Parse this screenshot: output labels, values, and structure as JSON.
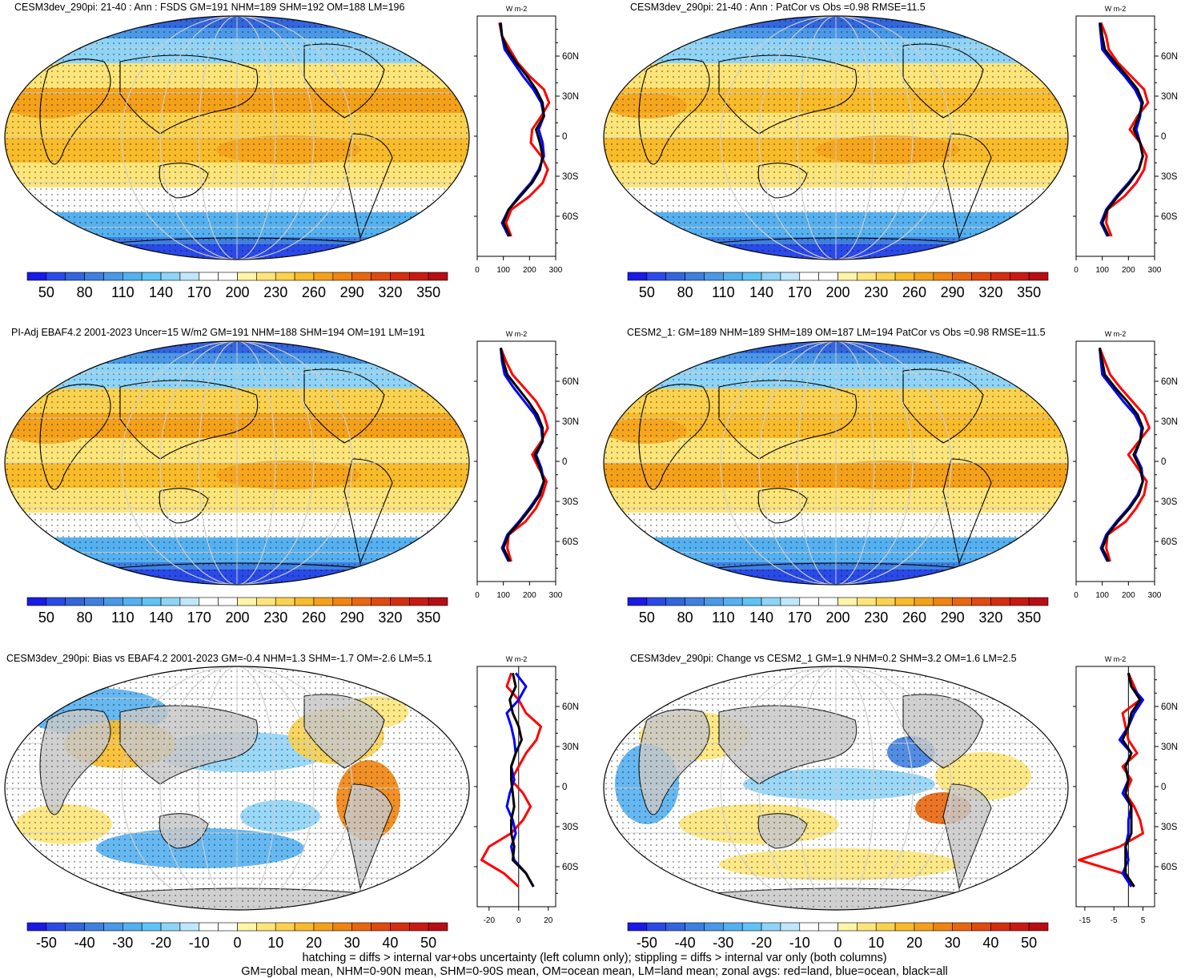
{
  "footer": {
    "line1": "hatching = diffs > internal var+obs uncertainty (left column only); stippling = diffs > internal var only (both columns)",
    "line2": "GM=global mean, NHM=0-90N mean, SHM=0-90S mean, OM=ocean mean, LM=land mean; zonal avgs: red=land, blue=ocean, black=all"
  },
  "colors": {
    "land_line": "#ff0000",
    "ocean_line": "#0000ff",
    "all_line": "#000000",
    "missing": "#c8c8c8",
    "colormap": [
      "#1a1ae6",
      "#2a4ae8",
      "#3366dd",
      "#3f7fe0",
      "#4a98e6",
      "#55b0ef",
      "#5fc3f5",
      "#8fd4f7",
      "#bfe7fb",
      "#ffffff",
      "#ffffff",
      "#fff4a8",
      "#fde57a",
      "#fbd24f",
      "#f8bb2a",
      "#f4a11a",
      "#ef8410",
      "#e86610",
      "#df4a10",
      "#d42e10",
      "#c81a12",
      "#b80d14"
    ]
  },
  "panels": [
    {
      "title": "CESM3dev_290pi: 21-40 : Ann : FSDS GM=191 NHM=189 SHM=192 OM=188 LM=196",
      "colorbar": {
        "labels": [
          "50",
          "80",
          "110",
          "140",
          "170",
          "200",
          "230",
          "260",
          "290",
          "320",
          "350"
        ]
      },
      "zonal": {
        "unit": "W m-2",
        "lat_labels": [
          "60N",
          "30N",
          "0",
          "30S",
          "60S"
        ],
        "x_ticks": [
          "0",
          "100",
          "200",
          "300"
        ],
        "xlim": [
          0,
          300
        ]
      }
    },
    {
      "title": "CESM3dev_290pi: 21-40 : Ann : PatCor vs Obs =0.98 RMSE=11.5",
      "colorbar": {
        "labels": [
          "50",
          "80",
          "110",
          "140",
          "170",
          "200",
          "230",
          "260",
          "290",
          "320",
          "350"
        ]
      },
      "zonal": {
        "unit": "W m-2",
        "lat_labels": [
          "60N",
          "30N",
          "0",
          "30S",
          "60S"
        ],
        "x_ticks": [
          "0",
          "100",
          "200",
          "300"
        ],
        "xlim": [
          0,
          300
        ]
      }
    },
    {
      "title": "PI-Adj EBAF4.2 2001-2023 Uncer=15 W/m2 GM=191 NHM=188 SHM=194 OM=191 LM=191",
      "colorbar": {
        "labels": [
          "50",
          "80",
          "110",
          "140",
          "170",
          "200",
          "230",
          "260",
          "290",
          "320",
          "350"
        ]
      },
      "zonal": {
        "unit": "W m-2",
        "lat_labels": [
          "60N",
          "30N",
          "0",
          "30S",
          "60S"
        ],
        "x_ticks": [
          "0",
          "100",
          "200",
          "300"
        ],
        "xlim": [
          0,
          300
        ]
      }
    },
    {
      "title": "CESM2_1: GM=189 NHM=189 SHM=189 OM=187 LM=194 PatCor vs Obs =0.98 RMSE=11.5",
      "colorbar": {
        "labels": [
          "50",
          "80",
          "110",
          "140",
          "170",
          "200",
          "230",
          "260",
          "290",
          "320",
          "350"
        ]
      },
      "zonal": {
        "unit": "W m-2",
        "lat_labels": [
          "60N",
          "30N",
          "0",
          "30S",
          "60S"
        ],
        "x_ticks": [
          "0",
          "100",
          "200",
          "300"
        ],
        "xlim": [
          0,
          300
        ]
      }
    },
    {
      "title": "CESM3dev_290pi: Bias vs EBAF4.2 2001-2023 GM=-0.4 NHM=1.3 SHM=-1.7 OM=-2.6 LM=5.1",
      "colorbar": {
        "labels": [
          "-50",
          "-40",
          "-30",
          "-20",
          "-10",
          "0",
          "10",
          "20",
          "30",
          "40",
          "50"
        ]
      },
      "zonal": {
        "unit": "W m-2",
        "lat_labels": [
          "60N",
          "30N",
          "0",
          "30S",
          "60S"
        ],
        "x_ticks": [
          "-20",
          "0",
          "20"
        ],
        "xlim": [
          -28,
          25
        ]
      }
    },
    {
      "title": "CESM3dev_290pi: Change vs CESM2_1 GM=1.9 NHM=0.2 SHM=3.2 OM=1.6 LM=2.5",
      "colorbar": {
        "labels": [
          "-50",
          "-40",
          "-30",
          "-20",
          "-10",
          "0",
          "10",
          "20",
          "30",
          "40",
          "50"
        ]
      },
      "zonal": {
        "unit": "W m-2",
        "lat_labels": [
          "60N",
          "30N",
          "0",
          "30S",
          "60S"
        ],
        "x_ticks": [
          "-15",
          "-5",
          "5"
        ],
        "xlim": [
          -18,
          9
        ]
      }
    }
  ],
  "chart_data": [
    {
      "type": "line",
      "title": "CESM3dev_290pi: 21-40 : Ann : FSDS GM=191 NHM=189 SHM=192 OM=188 LM=196",
      "xlabel": "W m-2",
      "xlim": [
        0,
        300
      ],
      "ylim": [
        -90,
        90
      ],
      "y": [
        85,
        75,
        65,
        55,
        45,
        35,
        25,
        15,
        5,
        -5,
        -15,
        -25,
        -35,
        -45,
        -55,
        -65,
        -75
      ],
      "series": [
        {
          "name": "land",
          "color": "#ff0000",
          "values": [
            85,
            95,
            125,
            155,
            200,
            255,
            275,
            245,
            210,
            205,
            245,
            270,
            250,
            200,
            130,
            110,
            130
          ]
        },
        {
          "name": "ocean",
          "color": "#0000ff",
          "values": [
            90,
            95,
            105,
            140,
            175,
            215,
            245,
            255,
            235,
            250,
            255,
            235,
            205,
            160,
            120,
            95,
            120
          ]
        },
        {
          "name": "all",
          "color": "#000000",
          "values": [
            88,
            95,
            115,
            150,
            190,
            225,
            250,
            255,
            225,
            240,
            250,
            240,
            210,
            165,
            120,
            100,
            125
          ]
        }
      ]
    },
    {
      "type": "line",
      "title": "CESM3dev_290pi: 21-40 : Ann : PatCor vs Obs =0.98 RMSE=11.5",
      "xlabel": "W m-2",
      "xlim": [
        0,
        300
      ],
      "ylim": [
        -90,
        90
      ],
      "y": [
        85,
        75,
        65,
        55,
        45,
        35,
        25,
        15,
        5,
        -5,
        -15,
        -25,
        -35,
        -45,
        -55,
        -65,
        -75
      ],
      "series": [
        {
          "name": "land",
          "color": "#ff0000",
          "values": [
            95,
            115,
            125,
            160,
            210,
            260,
            275,
            235,
            205,
            245,
            270,
            260,
            230,
            185,
            120,
            115,
            135
          ]
        },
        {
          "name": "ocean",
          "color": "#0000ff",
          "values": [
            90,
            95,
            100,
            140,
            185,
            225,
            250,
            245,
            230,
            245,
            255,
            240,
            200,
            155,
            115,
            95,
            120
          ]
        },
        {
          "name": "all",
          "color": "#000000",
          "values": [
            92,
            100,
            110,
            150,
            195,
            235,
            255,
            240,
            220,
            245,
            255,
            240,
            205,
            160,
            120,
            100,
            125
          ]
        }
      ]
    },
    {
      "type": "line",
      "title": "PI-Adj EBAF4.2 2001-2023 Uncer=15 W/m2 GM=191 NHM=188 SHM=194 OM=191 LM=191",
      "xlabel": "W m-2",
      "xlim": [
        0,
        300
      ],
      "ylim": [
        -90,
        90
      ],
      "y": [
        85,
        75,
        65,
        55,
        45,
        35,
        25,
        15,
        5,
        -5,
        -15,
        -25,
        -35,
        -45,
        -55,
        -65,
        -75
      ],
      "series": [
        {
          "name": "land",
          "color": "#ff0000",
          "values": [
            90,
            110,
            135,
            180,
            225,
            255,
            270,
            245,
            210,
            235,
            265,
            250,
            225,
            185,
            120,
            115,
            130
          ]
        },
        {
          "name": "ocean",
          "color": "#0000ff",
          "values": [
            90,
            95,
            105,
            140,
            180,
            220,
            245,
            250,
            225,
            245,
            255,
            235,
            200,
            160,
            115,
            95,
            120
          ]
        },
        {
          "name": "all",
          "color": "#000000",
          "values": [
            90,
            100,
            115,
            155,
            195,
            230,
            250,
            250,
            220,
            240,
            255,
            240,
            205,
            165,
            120,
            100,
            125
          ]
        }
      ]
    },
    {
      "type": "line",
      "title": "CESM2_1: GM=189 NHM=189 SHM=189 OM=187 LM=194 PatCor vs Obs =0.98 RMSE=11.5",
      "xlabel": "W m-2",
      "xlim": [
        0,
        300
      ],
      "ylim": [
        -90,
        90
      ],
      "y": [
        85,
        75,
        65,
        55,
        45,
        35,
        25,
        15,
        5,
        -5,
        -15,
        -25,
        -35,
        -45,
        -55,
        -65,
        -75
      ],
      "series": [
        {
          "name": "land",
          "color": "#ff0000",
          "values": [
            90,
            110,
            130,
            170,
            215,
            260,
            280,
            240,
            200,
            235,
            270,
            260,
            230,
            190,
            120,
            115,
            130
          ]
        },
        {
          "name": "ocean",
          "color": "#0000ff",
          "values": [
            90,
            95,
            100,
            140,
            180,
            225,
            250,
            245,
            225,
            250,
            255,
            235,
            200,
            155,
            115,
            95,
            120
          ]
        },
        {
          "name": "all",
          "color": "#000000",
          "values": [
            90,
            100,
            110,
            150,
            195,
            235,
            255,
            245,
            220,
            245,
            255,
            240,
            205,
            160,
            120,
            100,
            125
          ]
        }
      ]
    },
    {
      "type": "line",
      "title": "CESM3dev_290pi: Bias vs EBAF4.2 2001-2023 GM=-0.4 NHM=1.3 SHM=-1.7 OM=-2.6 LM=5.1",
      "xlabel": "W m-2",
      "xlim": [
        -28,
        25
      ],
      "ylim": [
        -90,
        90
      ],
      "y": [
        85,
        75,
        65,
        55,
        45,
        35,
        25,
        15,
        5,
        -5,
        -15,
        -25,
        -35,
        -45,
        -55,
        -65,
        -75
      ],
      "series": [
        {
          "name": "land",
          "color": "#ff0000",
          "values": [
            -5,
            -8,
            0,
            5,
            15,
            12,
            5,
            0,
            -5,
            3,
            8,
            3,
            -5,
            -20,
            -25,
            -10,
            0
          ]
        },
        {
          "name": "ocean",
          "color": "#0000ff",
          "values": [
            -2,
            5,
            0,
            -8,
            -5,
            -3,
            -2,
            -5,
            -3,
            -6,
            -8,
            -4,
            -2,
            -5,
            -3,
            5,
            10
          ]
        },
        {
          "name": "all",
          "color": "#000000",
          "values": [
            -4,
            -2,
            -6,
            -4,
            0,
            2,
            -2,
            -5,
            -5,
            -4,
            -3,
            -5,
            -5,
            -3,
            -4,
            5,
            10
          ]
        }
      ]
    },
    {
      "type": "line",
      "title": "CESM3dev_290pi: Change vs CESM2_1 GM=1.9 NHM=0.2 SHM=3.2 OM=1.6 LM=2.5",
      "xlabel": "W m-2",
      "xlim": [
        -18,
        9
      ],
      "ylim": [
        -90,
        90
      ],
      "y": [
        85,
        75,
        65,
        55,
        45,
        35,
        25,
        15,
        5,
        -5,
        -15,
        -25,
        -35,
        -45,
        -55,
        -65,
        -75
      ],
      "series": [
        {
          "name": "land",
          "color": "#ff0000",
          "values": [
            0,
            2,
            4,
            -2,
            -1,
            0,
            3,
            -2,
            1,
            -1,
            2,
            4,
            5,
            -3,
            -17,
            -2,
            2
          ]
        },
        {
          "name": "ocean",
          "color": "#0000ff",
          "values": [
            0,
            1,
            5,
            2,
            0,
            -3,
            1,
            -1,
            0,
            -2,
            1,
            0,
            0,
            -1,
            0,
            -2,
            1
          ]
        },
        {
          "name": "all",
          "color": "#000000",
          "values": [
            0,
            1,
            4,
            1,
            0,
            -2,
            1,
            -1,
            0,
            -1,
            1,
            1,
            1,
            -1,
            -1,
            -1,
            2
          ]
        }
      ]
    }
  ]
}
